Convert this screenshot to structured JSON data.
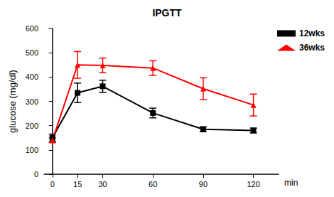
{
  "chart_data": {
    "type": "line",
    "title": "IPGTT",
    "x_label": "min",
    "y_label": "glucose (mg/dl)",
    "x": [
      0,
      15,
      30,
      60,
      90,
      120
    ],
    "xlim": [
      -5,
      135
    ],
    "xticks": [
      0,
      15,
      30,
      60,
      90,
      120
    ],
    "ylim": [
      0,
      600
    ],
    "yticks": [
      0,
      100,
      200,
      300,
      400,
      500,
      600
    ],
    "grid": false,
    "legend": "right",
    "series": [
      {
        "name": "12wks",
        "color": "#000000",
        "marker": "square",
        "line_style": "solid",
        "values": [
          150,
          335,
          362,
          252,
          185,
          180
        ],
        "errors": [
          15,
          40,
          25,
          20,
          10,
          10
        ]
      },
      {
        "name": "36wks",
        "color": "#ff0000",
        "marker": "triangle",
        "line_style": "solid",
        "values": [
          140,
          450,
          448,
          437,
          352,
          285
        ],
        "errors": [
          10,
          55,
          30,
          30,
          45,
          45
        ]
      }
    ]
  }
}
